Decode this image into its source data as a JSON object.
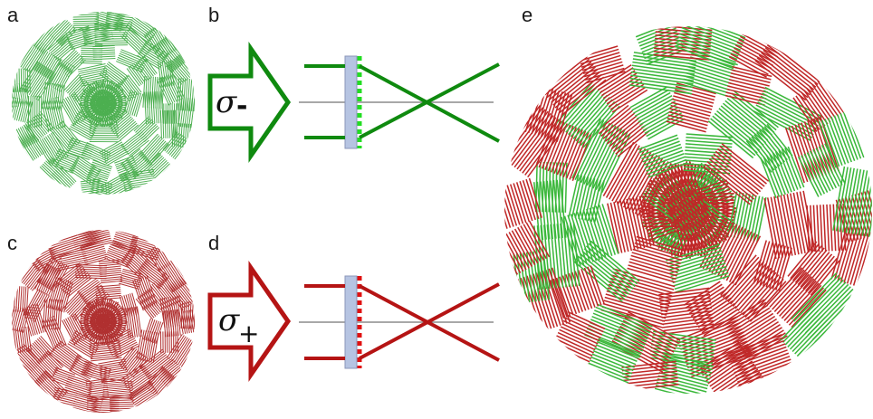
{
  "panels": {
    "a": {
      "label": "a",
      "color": "#4caf50"
    },
    "b": {
      "label": "b",
      "polarization": "σ",
      "subscript": "-",
      "color": "#0f8a0f",
      "dot_color": "#22dd22"
    },
    "c": {
      "label": "c",
      "color": "#b03030"
    },
    "d": {
      "label": "d",
      "polarization": "σ",
      "subscript": "+",
      "color": "#b51414",
      "dot_color": "#e01010"
    },
    "e": {
      "label": "e",
      "colors": [
        "#3cb83c",
        "#c02828"
      ]
    }
  },
  "optics": {
    "substrate_color": "#b6c4e2",
    "axis_color": "#8c8c8c"
  }
}
